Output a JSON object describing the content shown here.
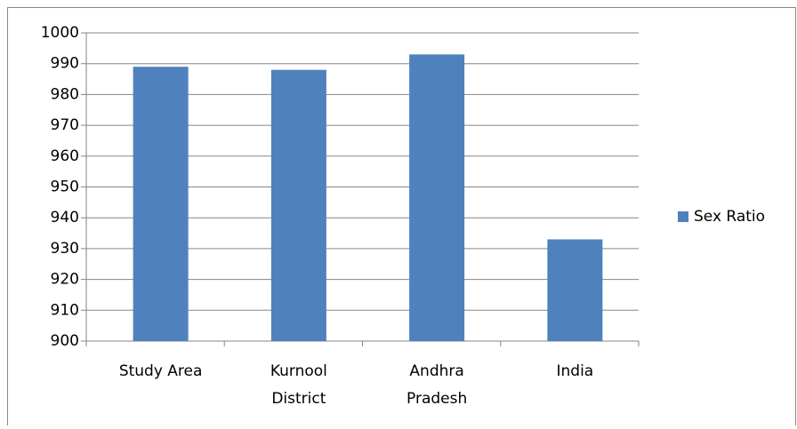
{
  "chart_data": {
    "type": "bar",
    "categories": [
      [
        "Study Area"
      ],
      [
        "Kurnool",
        "District"
      ],
      [
        "Andhra",
        "Pradesh"
      ],
      [
        "India"
      ]
    ],
    "series": [
      {
        "name": "Sex Ratio",
        "color": "#4f81bd",
        "values": [
          989,
          988,
          993,
          933
        ]
      }
    ],
    "ylim": [
      900,
      1000
    ],
    "yticks": [
      900,
      910,
      920,
      930,
      940,
      950,
      960,
      970,
      980,
      990,
      1000
    ],
    "grid": true,
    "legend": "right"
  }
}
